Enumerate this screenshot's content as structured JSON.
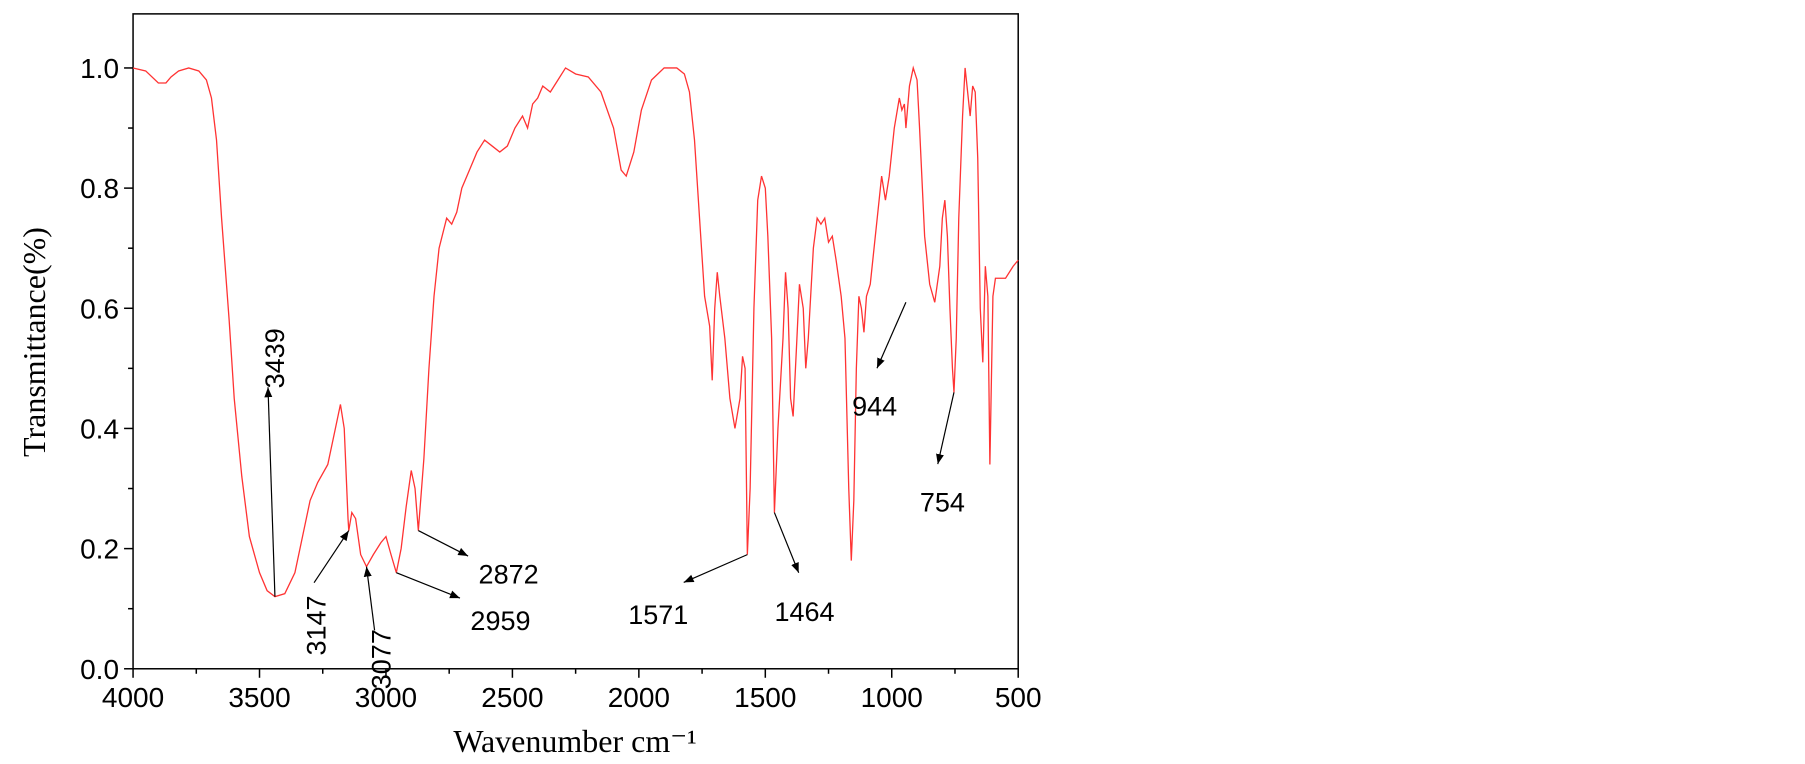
{
  "chart_data": {
    "type": "line",
    "xlabel": "Wavenumber cm⁻¹",
    "ylabel": "Transmittance(%)",
    "xlim": [
      4000,
      500
    ],
    "ylim": [
      0,
      1.09
    ],
    "xticks": [
      4000,
      3500,
      3000,
      2500,
      2000,
      1500,
      1000,
      500
    ],
    "xticks_minor": [
      3750,
      3250,
      2750,
      2250,
      1750,
      1250,
      750
    ],
    "yticks": [
      {
        "value": 0,
        "label": "0.0"
      },
      0.2,
      0.4,
      0.6,
      0.8,
      {
        "value": 1,
        "label": "1.0"
      }
    ],
    "yticks_minor": [
      0.1,
      0.3,
      0.5,
      0.7,
      0.9
    ],
    "x": [
      4000,
      3950,
      3900,
      3870,
      3850,
      3820,
      3780,
      3740,
      3710,
      3690,
      3670,
      3650,
      3620,
      3600,
      3570,
      3540,
      3500,
      3470,
      3439,
      3400,
      3360,
      3330,
      3300,
      3270,
      3230,
      3200,
      3180,
      3165,
      3150,
      3147,
      3135,
      3120,
      3100,
      3077,
      3050,
      3020,
      3000,
      2980,
      2959,
      2940,
      2920,
      2900,
      2885,
      2872,
      2850,
      2830,
      2810,
      2790,
      2760,
      2740,
      2720,
      2700,
      2670,
      2640,
      2610,
      2580,
      2550,
      2520,
      2490,
      2460,
      2440,
      2420,
      2400,
      2380,
      2350,
      2320,
      2290,
      2250,
      2200,
      2150,
      2100,
      2070,
      2050,
      2020,
      1990,
      1950,
      1900,
      1850,
      1820,
      1800,
      1780,
      1760,
      1740,
      1720,
      1710,
      1700,
      1690,
      1680,
      1660,
      1640,
      1620,
      1600,
      1590,
      1580,
      1571,
      1560,
      1545,
      1530,
      1515,
      1500,
      1490,
      1475,
      1464,
      1450,
      1430,
      1420,
      1410,
      1400,
      1390,
      1375,
      1365,
      1350,
      1340,
      1330,
      1310,
      1295,
      1280,
      1265,
      1250,
      1235,
      1220,
      1200,
      1185,
      1170,
      1160,
      1150,
      1140,
      1130,
      1120,
      1110,
      1100,
      1085,
      1070,
      1050,
      1040,
      1025,
      1010,
      990,
      970,
      960,
      950,
      944,
      930,
      915,
      900,
      890,
      870,
      850,
      830,
      810,
      800,
      790,
      780,
      770,
      760,
      754,
      745,
      735,
      720,
      710,
      700,
      690,
      680,
      670,
      660,
      650,
      640,
      630,
      620,
      612,
      600,
      590,
      550,
      520,
      500
    ],
    "series": [
      {
        "color": "#ff3333",
        "values": [
          1.0,
          0.995,
          0.975,
          0.975,
          0.985,
          0.995,
          1.0,
          0.995,
          0.98,
          0.95,
          0.88,
          0.75,
          0.58,
          0.45,
          0.32,
          0.22,
          0.16,
          0.13,
          0.12,
          0.125,
          0.16,
          0.22,
          0.28,
          0.31,
          0.34,
          0.4,
          0.44,
          0.4,
          0.25,
          0.23,
          0.26,
          0.25,
          0.19,
          0.17,
          0.19,
          0.21,
          0.22,
          0.19,
          0.16,
          0.2,
          0.27,
          0.33,
          0.3,
          0.23,
          0.35,
          0.5,
          0.62,
          0.7,
          0.75,
          0.74,
          0.76,
          0.8,
          0.83,
          0.86,
          0.88,
          0.87,
          0.86,
          0.87,
          0.9,
          0.92,
          0.9,
          0.94,
          0.95,
          0.97,
          0.96,
          0.98,
          1.0,
          0.99,
          0.985,
          0.96,
          0.9,
          0.83,
          0.82,
          0.86,
          0.93,
          0.98,
          1.0,
          1.0,
          0.99,
          0.96,
          0.88,
          0.75,
          0.62,
          0.57,
          0.48,
          0.6,
          0.66,
          0.62,
          0.55,
          0.45,
          0.4,
          0.45,
          0.52,
          0.5,
          0.19,
          0.3,
          0.6,
          0.78,
          0.82,
          0.8,
          0.72,
          0.55,
          0.26,
          0.4,
          0.55,
          0.66,
          0.6,
          0.45,
          0.42,
          0.55,
          0.64,
          0.6,
          0.5,
          0.55,
          0.7,
          0.75,
          0.74,
          0.75,
          0.71,
          0.72,
          0.68,
          0.62,
          0.55,
          0.3,
          0.18,
          0.28,
          0.5,
          0.62,
          0.6,
          0.56,
          0.62,
          0.64,
          0.7,
          0.78,
          0.82,
          0.78,
          0.82,
          0.9,
          0.95,
          0.93,
          0.94,
          0.9,
          0.97,
          1.0,
          0.98,
          0.9,
          0.72,
          0.64,
          0.61,
          0.67,
          0.75,
          0.78,
          0.72,
          0.6,
          0.5,
          0.46,
          0.55,
          0.75,
          0.92,
          1.0,
          0.96,
          0.92,
          0.97,
          0.96,
          0.85,
          0.6,
          0.51,
          0.67,
          0.62,
          0.34,
          0.62,
          0.65,
          0.65,
          0.67,
          0.68
        ]
      }
    ],
    "annotations": [
      {
        "text": "3439",
        "x": 3439,
        "y": 0.12
      },
      {
        "text": "3147",
        "x": 3147,
        "y": 0.23
      },
      {
        "text": "3077",
        "x": 3077,
        "y": 0.17
      },
      {
        "text": "2959",
        "x": 2959,
        "y": 0.16
      },
      {
        "text": "2872",
        "x": 2872,
        "y": 0.23
      },
      {
        "text": "1571",
        "x": 1571,
        "y": 0.19
      },
      {
        "text": "1464",
        "x": 1464,
        "y": 0.26
      },
      {
        "text": "944",
        "x": 944,
        "y": 0.61
      },
      {
        "text": "754",
        "x": 754,
        "y": 0.46
      }
    ]
  }
}
